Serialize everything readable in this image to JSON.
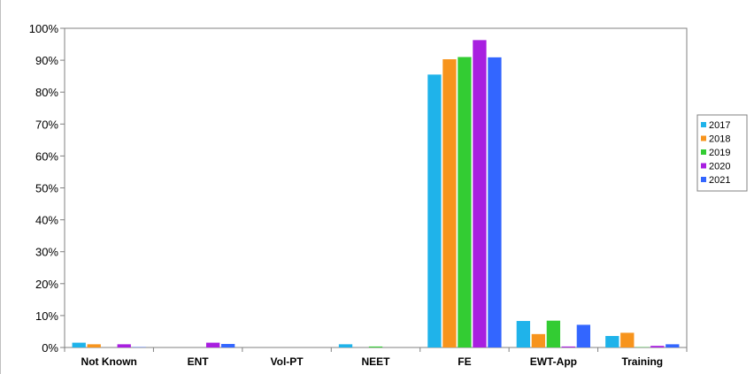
{
  "chart_data": {
    "type": "bar",
    "title": "",
    "xlabel": "",
    "ylabel": "",
    "categories": [
      "Not Known",
      "ENT",
      "Vol-PT",
      "NEET",
      "FE",
      "EWT-App",
      "Training"
    ],
    "series": [
      {
        "name": "2017",
        "color": "#1fb3ea",
        "values": [
          1.5,
          0,
          0,
          1.0,
          85.5,
          8.3,
          3.6
        ]
      },
      {
        "name": "2018",
        "color": "#f7941d",
        "values": [
          1.0,
          0,
          0,
          0,
          90.3,
          4.2,
          4.6
        ]
      },
      {
        "name": "2019",
        "color": "#33cc33",
        "values": [
          0,
          0,
          0,
          0.3,
          91.0,
          8.4,
          0.1
        ]
      },
      {
        "name": "2020",
        "color": "#a81fe0",
        "values": [
          1.0,
          1.5,
          0,
          0,
          96.3,
          0.3,
          0.5
        ]
      },
      {
        "name": "2021",
        "color": "#3366ff",
        "values": [
          0.1,
          1.1,
          0,
          0,
          90.9,
          7.1,
          1.0
        ]
      }
    ],
    "ylim": [
      0,
      100
    ],
    "yticks": [
      "0%",
      "10%",
      "20%",
      "30%",
      "40%",
      "50%",
      "60%",
      "70%",
      "80%",
      "90%",
      "100%"
    ],
    "grid": false,
    "legend_position": "right"
  }
}
